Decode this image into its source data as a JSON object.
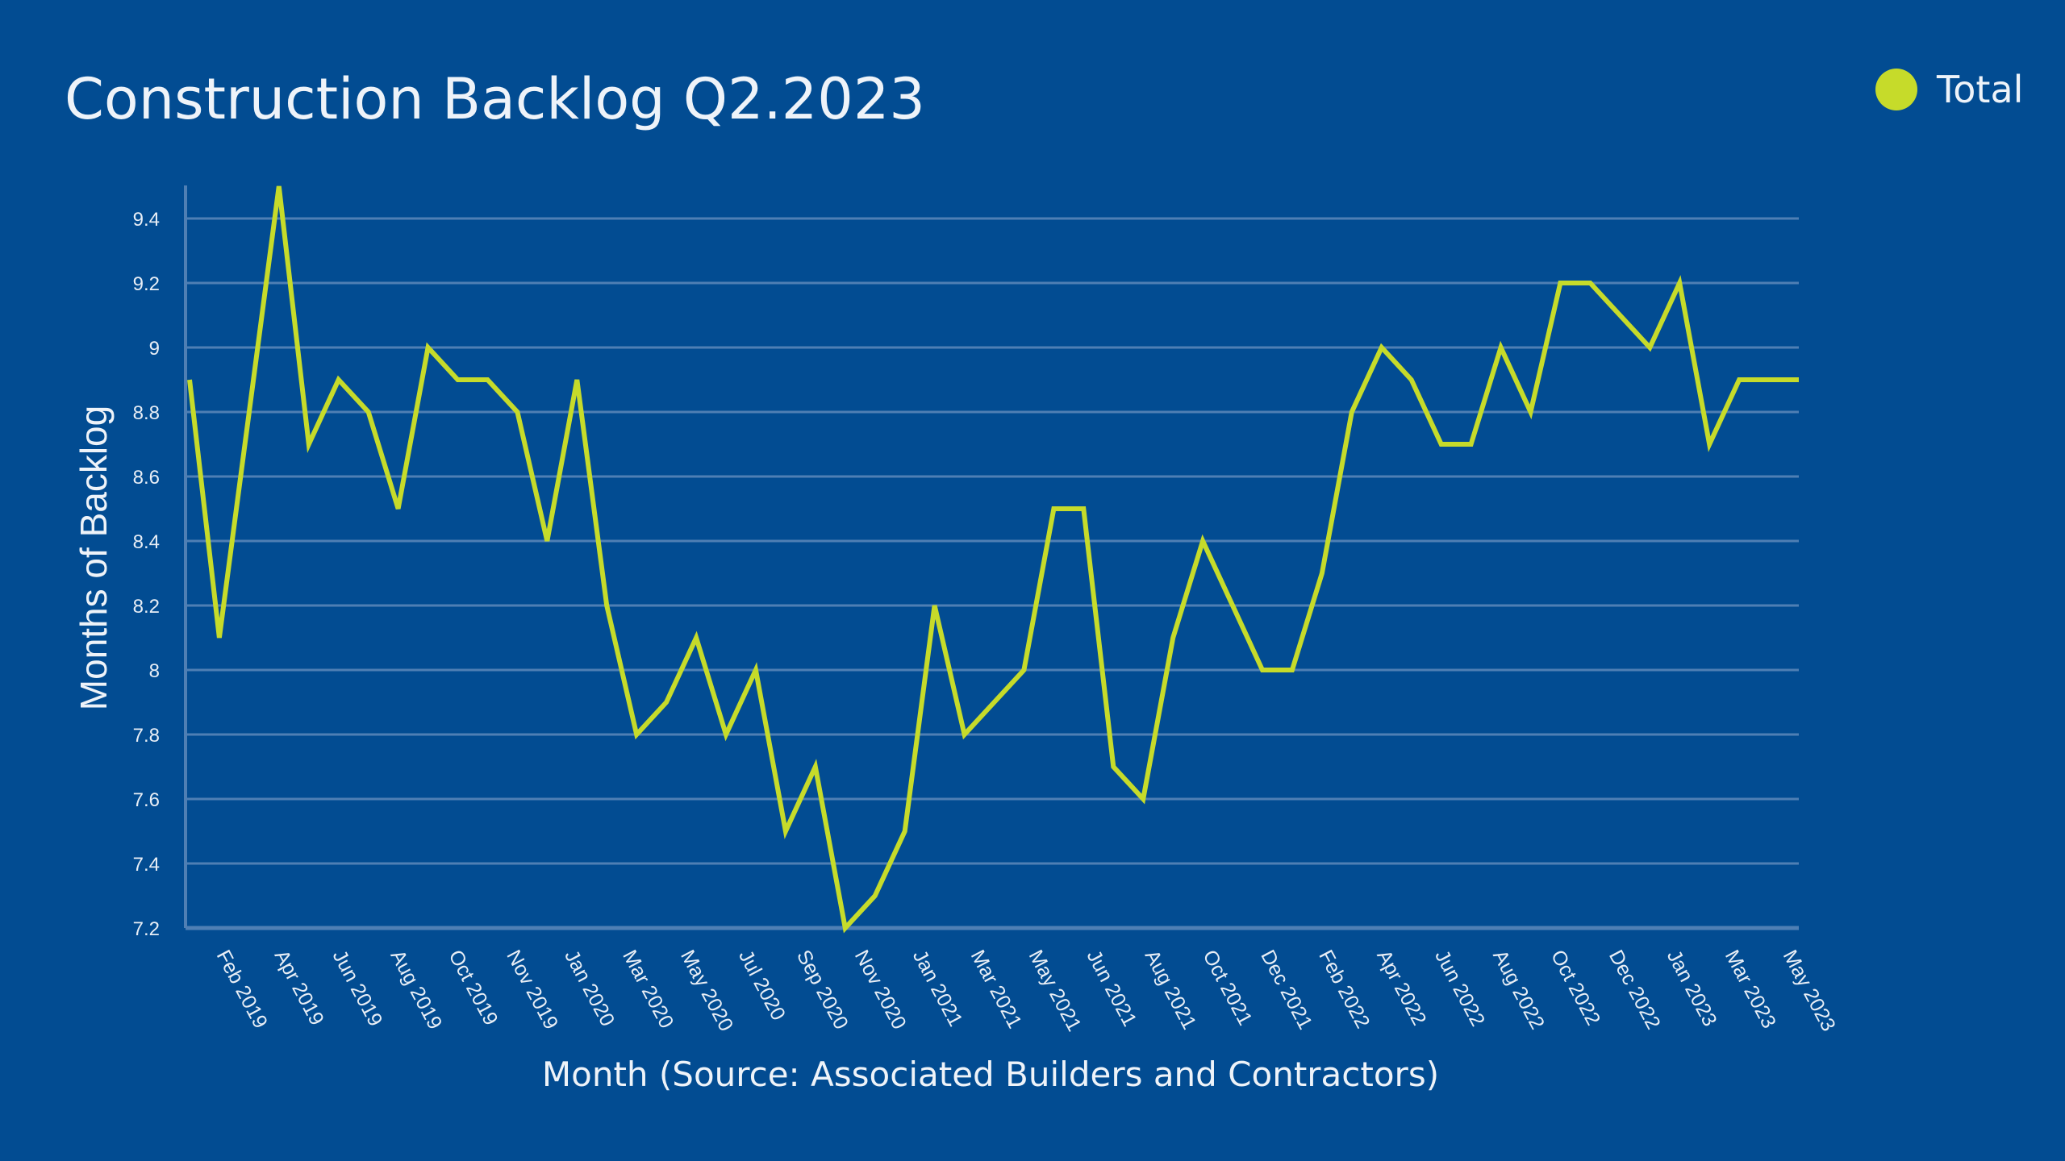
{
  "chart_data": {
    "type": "line",
    "title": "Construction Backlog Q2.2023",
    "xlabel": "Month (Source: Associated Builders and Contractors)",
    "ylabel": "Months of Backlog",
    "ylim": [
      7.2,
      9.5
    ],
    "yticks": [
      "7.2",
      "7.4",
      "7.6",
      "7.8",
      "8",
      "8.2",
      "8.4",
      "8.6",
      "8.8",
      "9",
      "9.2",
      "9.4"
    ],
    "grid": true,
    "legend_position": "top-right",
    "x_tick_labels": [
      "Feb 2019",
      "Apr 2019",
      "Jun 2019",
      "Aug 2019",
      "Oct 2019",
      "Nov 2019",
      "Jan 2020",
      "Mar 2020",
      "May 2020",
      "Jul 2020",
      "Sep 2020",
      "Nov 2020",
      "Jan 2021",
      "Mar 2021",
      "May 2021",
      "Jun 2021",
      "Aug 2021",
      "Oct 2021",
      "Dec 2021",
      "Feb 2022",
      "Apr 2022",
      "Jun 2022",
      "Aug 2022",
      "Oct 2022",
      "Dec 2022",
      "Jan 2023",
      "Mar 2023",
      "May 2023"
    ],
    "series": [
      {
        "name": "Total",
        "color": "#c6db2a",
        "values": [
          8.9,
          8.1,
          8.8,
          9.5,
          8.7,
          8.9,
          8.8,
          8.5,
          9.0,
          8.9,
          8.9,
          8.8,
          8.4,
          8.9,
          8.2,
          7.8,
          7.9,
          8.1,
          7.8,
          8.0,
          7.5,
          7.7,
          7.2,
          7.3,
          7.5,
          8.2,
          7.8,
          7.9,
          8.0,
          8.5,
          8.5,
          7.7,
          7.6,
          8.1,
          8.4,
          8.2,
          8.0,
          8.0,
          8.3,
          8.8,
          9.0,
          8.9,
          8.7,
          8.7,
          9.0,
          8.8,
          9.2,
          9.2,
          9.1,
          9.0,
          9.2,
          8.7,
          8.9,
          8.9,
          8.9
        ]
      }
    ]
  },
  "colors": {
    "background": "#024c92",
    "line": "#c6db2a",
    "grid": "#4f7fb4"
  }
}
